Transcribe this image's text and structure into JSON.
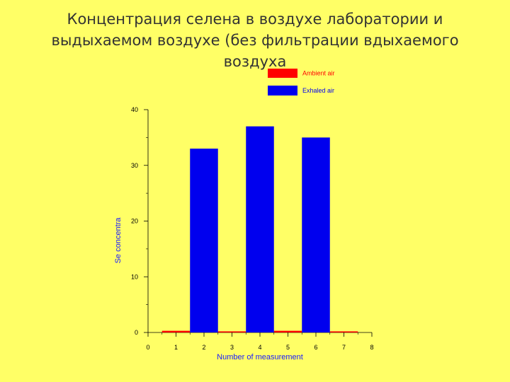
{
  "slide": {
    "title_lines": [
      "Концентрация селена в воздухе лаборатории и",
      "выдыхаемом воздухе (без фильтрации вдыхаемого",
      "воздуха"
    ]
  },
  "chart_data": {
    "type": "bar",
    "title": "",
    "xlabel": "Number of measurement",
    "ylabel": "Se concentra",
    "xlim": [
      0,
      8
    ],
    "ylim": [
      0,
      40
    ],
    "x_ticks": [
      "0",
      "1",
      "2",
      "3",
      "4",
      "5",
      "6",
      "7",
      "8"
    ],
    "y_ticks": [
      "0",
      "10",
      "20",
      "30",
      "40"
    ],
    "legend_position": "top-right",
    "series": [
      {
        "name": "Ambient air",
        "color": "#ff0000",
        "x": [
          1,
          3,
          5,
          7
        ],
        "values": [
          0.3,
          0.2,
          0.3,
          0.2
        ]
      },
      {
        "name": "Exhaled air",
        "color": "#0000ee",
        "x": [
          2,
          4,
          6
        ],
        "values": [
          33,
          37,
          35
        ]
      }
    ]
  }
}
